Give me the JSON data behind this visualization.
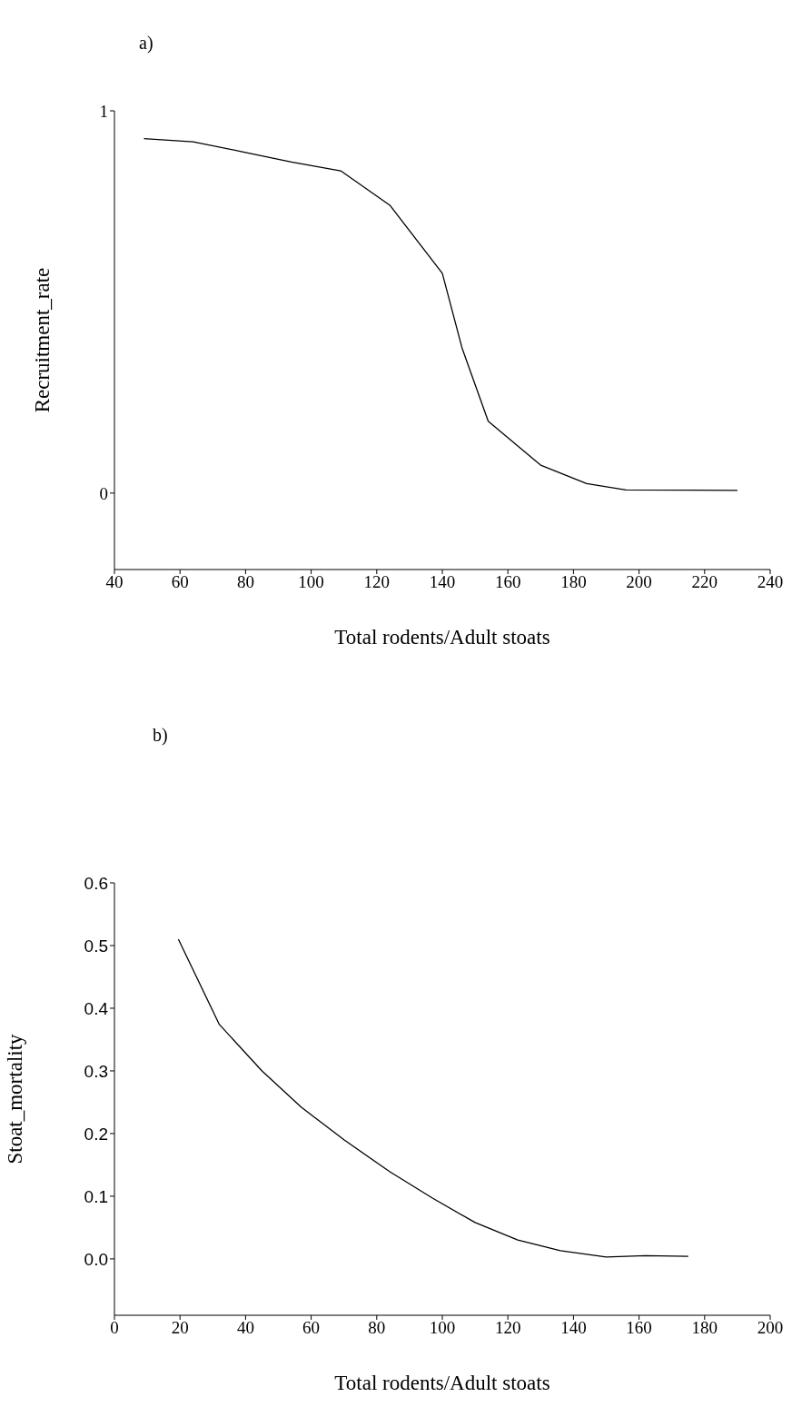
{
  "chart_data": [
    {
      "type": "line",
      "title": "a)",
      "xlabel": "Total rodents/Adult stoats",
      "ylabel": "Recruitment_rate",
      "xlim": [
        40,
        240
      ],
      "xticks": [
        40,
        60,
        80,
        100,
        120,
        140,
        160,
        180,
        200,
        220,
        240
      ],
      "ylim": [
        -0.2,
        1
      ],
      "yticks": [
        0,
        1
      ],
      "marker": "none",
      "line_style": "solid",
      "series": [
        {
          "color": "#000000",
          "x": [
            49,
            64,
            79,
            94,
            109,
            124,
            140,
            146,
            154,
            170,
            184,
            196,
            230
          ],
          "values": [
            0.927,
            0.919,
            0.893,
            0.866,
            0.843,
            0.753,
            0.575,
            0.38,
            0.188,
            0.073,
            0.025,
            0.008,
            0.007
          ]
        }
      ]
    },
    {
      "type": "line",
      "title": "b)",
      "xlabel": "Total rodents/Adult stoats",
      "ylabel": "Stoat_mortality",
      "xlim": [
        0,
        200
      ],
      "xticks": [
        0,
        20,
        40,
        60,
        80,
        100,
        120,
        140,
        160,
        180,
        200
      ],
      "ylim": [
        -0.09,
        0.6
      ],
      "yticks": [
        {
          "value": 0,
          "label": "0.0"
        },
        0.1,
        0.2,
        0.3,
        0.4,
        0.5,
        0.6
      ],
      "marker": "none",
      "line_style": "solid",
      "series": [
        {
          "color": "#000000",
          "x": [
            19.5,
            32,
            45,
            57,
            70,
            84,
            97,
            110,
            123,
            136,
            150,
            162,
            175
          ],
          "values": [
            0.51,
            0.374,
            0.3,
            0.242,
            0.19,
            0.139,
            0.097,
            0.058,
            0.03,
            0.013,
            0.003,
            0.005,
            0.004
          ]
        }
      ]
    }
  ]
}
